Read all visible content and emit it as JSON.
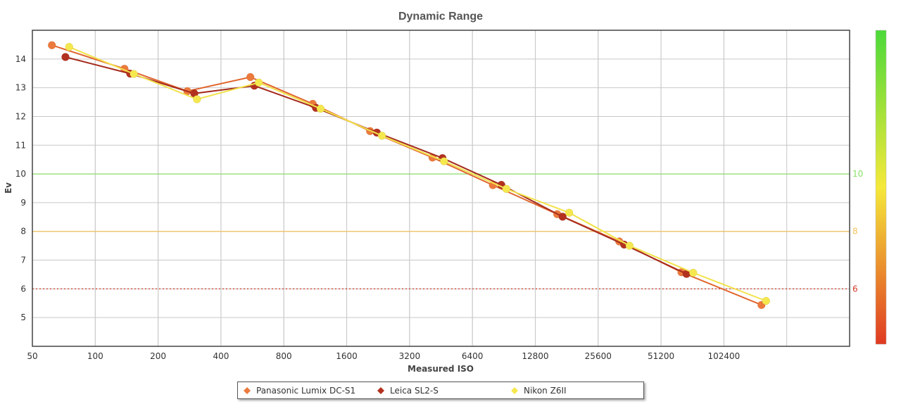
{
  "chart_data": {
    "type": "line",
    "title": "Dynamic Range",
    "xlabel": "Measured ISO",
    "ylabel": "Ev",
    "x_scale": "log2",
    "xlim": [
      50,
      409600
    ],
    "ylim": [
      4,
      15
    ],
    "x_ticks": [
      50,
      100,
      200,
      400,
      800,
      1600,
      3200,
      6400,
      12800,
      25600,
      51200,
      102400
    ],
    "y_ticks": [
      5,
      6,
      7,
      8,
      9,
      10,
      11,
      12,
      13,
      14
    ],
    "grid": true,
    "legend_position": "bottom",
    "reference_lines": [
      {
        "value": 10,
        "label": "10",
        "color": "#8be068",
        "style": "solid"
      },
      {
        "value": 8,
        "label": "8",
        "color": "#f5c25c",
        "style": "solid"
      },
      {
        "value": 6,
        "label": "6",
        "color": "#d23b2a",
        "style": "dotted"
      }
    ],
    "side_scale": {
      "gradient": [
        "#4cd93a",
        "#f5e93a",
        "#e03a22"
      ],
      "labels": [
        "10",
        "8",
        "6"
      ]
    },
    "series": [
      {
        "name": "Panasonic Lumix DC-S1",
        "color": "#e0662e",
        "marker_color": "#ec7a3c",
        "x": [
          62,
          138,
          276,
          553,
          1100,
          2070,
          4120,
          8020,
          16300,
          32300,
          64100,
          155000
        ],
        "y": [
          14.48,
          13.66,
          12.88,
          13.37,
          12.44,
          11.49,
          10.57,
          9.61,
          8.6,
          7.65,
          6.58,
          5.44
        ]
      },
      {
        "name": "Leica SL2-S",
        "color": "#a52a1c",
        "marker_color": "#b3311f",
        "x": [
          72,
          147,
          298,
          578,
          1140,
          2230,
          4600,
          8800,
          17300,
          34100,
          67800
        ],
        "y": [
          14.07,
          13.49,
          12.8,
          13.07,
          12.3,
          11.44,
          10.55,
          9.62,
          8.51,
          7.54,
          6.52
        ]
      },
      {
        "name": "Nikon Z6II",
        "color": "#f2e24a",
        "marker_color": "#f5e84f",
        "x": [
          75,
          153,
          307,
          607,
          1200,
          2360,
          4680,
          9300,
          18600,
          36200,
          73000,
          163000
        ],
        "y": [
          14.42,
          13.48,
          12.6,
          13.18,
          12.27,
          11.33,
          10.44,
          9.48,
          8.65,
          7.5,
          6.56,
          5.58
        ]
      }
    ]
  }
}
